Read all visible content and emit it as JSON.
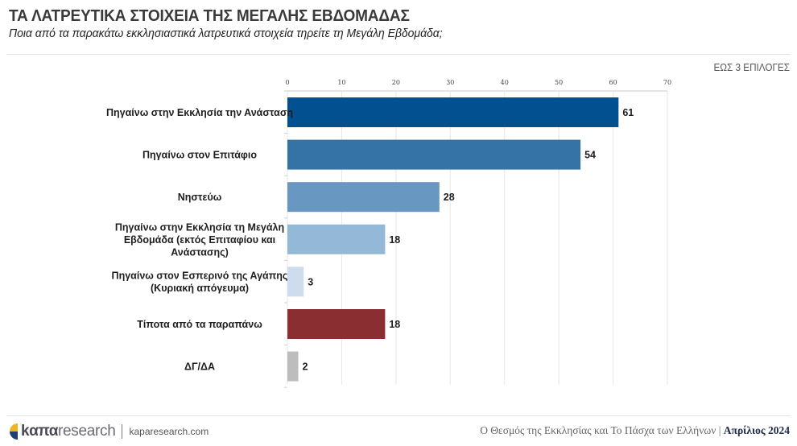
{
  "header": {
    "title": "ΤΑ ΛΑΤΡΕΥΤΙΚΑ ΣΤΟΙΧΕΙΑ ΤΗΣ ΜΕΓΑΛΗΣ ΕΒΔΟΜΑΔΑΣ",
    "subtitle": "Ποια από τα παρακάτω εκκλησιαστικά λατρευτικά στοιχεία τηρείτε τη Μεγάλη Εβδομάδα;",
    "note": "ΕΩΣ 3 ΕΠΙΛΟΓΕΣ"
  },
  "chart_data": {
    "type": "bar",
    "orientation": "horizontal",
    "title": "ΤΑ ΛΑΤΡΕΥΤΙΚΑ ΣΤΟΙΧΕΙΑ ΤΗΣ ΜΕΓΑΛΗΣ ΕΒΔΟΜΑΔΑΣ",
    "xlabel": "",
    "ylabel": "",
    "xlim": [
      0,
      70
    ],
    "x_ticks": [
      0,
      10,
      20,
      30,
      40,
      50,
      60,
      70
    ],
    "x_tick_labels": [
      "0",
      "10",
      "20",
      "30",
      "40",
      "50",
      "60",
      "70"
    ],
    "axis_position": "top",
    "grid": true,
    "categories": [
      [
        "Πηγαίνω στην Εκκλησία την Ανάσταση"
      ],
      [
        "Πηγαίνω στον Επιτάφιο"
      ],
      [
        "Νηστεύω"
      ],
      [
        "Πηγαίνω στην Εκκλησία τη Μεγάλη",
        "Εβδομάδα (εκτός Επιταφίου και",
        "Ανάστασης)"
      ],
      [
        "Πηγαίνω στον Εσπερινό της Αγάπης",
        "(Κυριακή απόγευμα)"
      ],
      [
        "Τίποτα από τα παραπάνω"
      ],
      [
        "ΔΓ/ΔΑ"
      ]
    ],
    "values": [
      61,
      54,
      28,
      18,
      3,
      18,
      2
    ],
    "value_labels": [
      "61",
      "54",
      "28",
      "18",
      "3",
      "18",
      "2"
    ],
    "colors": [
      "#02508f",
      "#3573a6",
      "#6898c1",
      "#93b8d8",
      "#cddded",
      "#8b2e31",
      "#bdbdbd"
    ]
  },
  "footer": {
    "brand_bold": "kαπα",
    "brand_light": "research",
    "url": "kaparesearch.com",
    "report_title": "Ο Θεσμός της Εκκλησίας και Το Πάσχα των Ελλήνων",
    "separator": "|",
    "date": "Απρίλιος 2024",
    "logo_colors": [
      "#f0b323",
      "#1f3f73"
    ]
  }
}
